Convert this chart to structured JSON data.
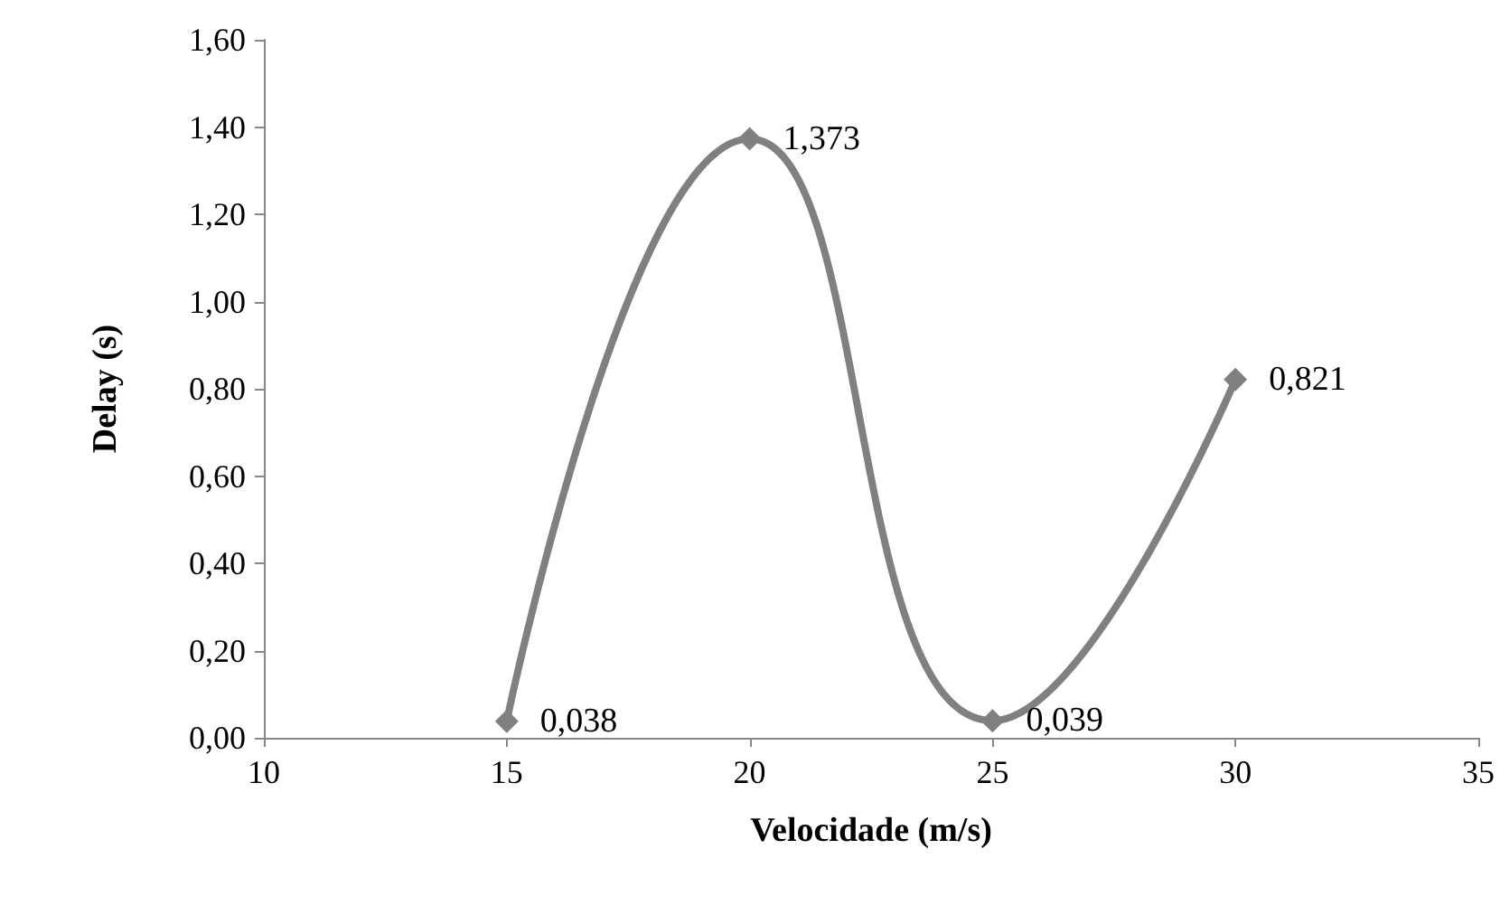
{
  "chart_data": {
    "type": "line",
    "xlabel": "Velocidade (m/s)",
    "ylabel": "Delay (s)",
    "x": [
      15,
      20,
      25,
      30
    ],
    "series": [
      {
        "color": "#808080",
        "values": [
          0.038,
          1.373,
          0.039,
          0.821
        ],
        "value_labels": [
          "0,038",
          "1,373",
          "0,039",
          "0,821"
        ]
      }
    ],
    "xlim": [
      10,
      35
    ],
    "xticks": [
      10,
      15,
      20,
      25,
      30,
      35
    ],
    "ylim": [
      0,
      1.6
    ],
    "yticks": [
      {
        "value": 0,
        "label": "0,00"
      },
      {
        "value": 0.2,
        "label": "0,20"
      },
      {
        "value": 0.4,
        "label": "0,40"
      },
      {
        "value": 0.6,
        "label": "0,60"
      },
      {
        "value": 0.8,
        "label": "0,80"
      },
      {
        "value": 1.0,
        "label": "1,00"
      },
      {
        "value": 1.2,
        "label": "1,20"
      },
      {
        "value": 1.4,
        "label": "1,40"
      },
      {
        "value": 1.6,
        "label": "1,60"
      }
    ],
    "marker": "diamond",
    "grid": false
  }
}
